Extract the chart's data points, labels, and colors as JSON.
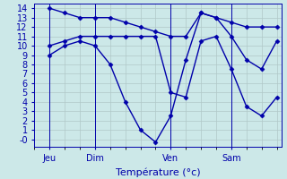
{
  "background_color": "#cce8e8",
  "grid_color": "#b0c8c8",
  "line_color": "#0000aa",
  "marker": "D",
  "markersize": 2.5,
  "linewidth": 1.0,
  "xlabel": "Température (°c)",
  "xlabel_fontsize": 8,
  "tick_fontsize": 7,
  "ylim": [
    -0.8,
    14.5
  ],
  "yticks": [
    0,
    1,
    2,
    3,
    4,
    5,
    6,
    7,
    8,
    9,
    10,
    11,
    12,
    13,
    14
  ],
  "ytick_labels": [
    "-0",
    "1",
    "2",
    "3",
    "4",
    "5",
    "6",
    "7",
    "8",
    "9",
    "10",
    "11",
    "12",
    "13",
    "14"
  ],
  "xlim": [
    -0.3,
    15.3
  ],
  "day_positions": [
    0,
    3,
    8,
    12
  ],
  "day_labels": [
    "Jeu",
    "Dim",
    "Ven",
    "Sam"
  ],
  "series": [
    {
      "x": [
        0,
        1,
        2,
        3,
        4,
        5,
        6,
        7,
        8,
        9,
        10,
        11,
        12,
        13,
        14,
        15
      ],
      "y": [
        9.0,
        10.0,
        10.5,
        10.0,
        8.0,
        4.0,
        1.0,
        -0.3,
        2.5,
        8.5,
        13.5,
        13.0,
        11.0,
        8.5,
        7.5,
        10.5
      ]
    },
    {
      "x": [
        0,
        1,
        2,
        3,
        4,
        5,
        6,
        7,
        8,
        9,
        10,
        11,
        12,
        13,
        14,
        15
      ],
      "y": [
        14.0,
        13.5,
        13.0,
        13.0,
        13.0,
        12.5,
        12.0,
        11.5,
        11.0,
        11.0,
        13.5,
        13.0,
        12.5,
        12.0,
        12.0,
        12.0
      ]
    },
    {
      "x": [
        0,
        1,
        2,
        3,
        4,
        5,
        6,
        7,
        8,
        9,
        10,
        11,
        12,
        13,
        14,
        15
      ],
      "y": [
        10.0,
        10.5,
        11.0,
        11.0,
        11.0,
        11.0,
        11.0,
        11.0,
        5.0,
        4.5,
        10.5,
        11.0,
        7.5,
        3.5,
        2.5,
        4.5
      ]
    }
  ]
}
